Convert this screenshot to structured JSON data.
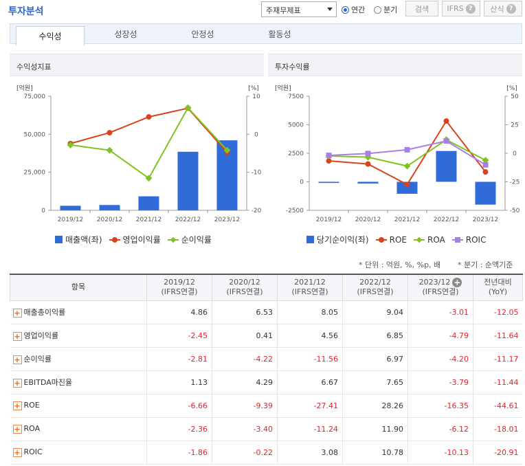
{
  "header": {
    "title": "투자분석",
    "select_value": "주재무제표",
    "radio_annual": "연간",
    "radio_quarter": "분기",
    "search_btn": "검색",
    "ifrs_btn": "IFRS",
    "formula_btn": "산식"
  },
  "tabs": [
    "수익성",
    "성장성",
    "안정성",
    "활동성"
  ],
  "left_chart": {
    "header": "수익성지표",
    "chart_data": {
      "type": "bar",
      "categories": [
        "2019/12",
        "2020/12",
        "2021/12",
        "2022/12",
        "2023/12"
      ],
      "left_unit": "[억원]",
      "right_unit": "[%]",
      "left_ticks": [
        "75,000",
        "50,000",
        "25,000",
        "0"
      ],
      "right_ticks": [
        "10",
        "0",
        "-10",
        "-20"
      ],
      "ylim_left": [
        0,
        75000
      ],
      "ylim_right": [
        -20,
        10
      ],
      "series": [
        {
          "name": "매출액(좌)",
          "kind": "bar",
          "axis": "left",
          "color": "#2f6bd9",
          "values": [
            3000,
            3500,
            9200,
            38500,
            46000
          ]
        },
        {
          "name": "영업이익률",
          "kind": "line",
          "marker": "circle",
          "axis": "right",
          "color": "#d9431b",
          "values": [
            -2.45,
            0.41,
            4.56,
            6.85,
            -4.79
          ]
        },
        {
          "name": "순이익률",
          "kind": "line",
          "marker": "diamond",
          "axis": "right",
          "color": "#7fc31f",
          "values": [
            -2.81,
            -4.22,
            -11.56,
            6.97,
            -4.2
          ]
        }
      ]
    }
  },
  "right_chart": {
    "header": "투자수익률",
    "chart_data": {
      "type": "bar",
      "categories": [
        "2019/12",
        "2020/12",
        "2021/12",
        "2022/12",
        "2023/12"
      ],
      "left_unit": "[억원]",
      "right_unit": "[%]",
      "left_ticks": [
        "7500",
        "5000",
        "2500",
        "0",
        "-2500"
      ],
      "right_ticks": [
        "50",
        "25",
        "0",
        "-25",
        "-50"
      ],
      "ylim_left": [
        -2500,
        7500
      ],
      "ylim_right": [
        -50,
        50
      ],
      "series": [
        {
          "name": "당기순이익(좌)",
          "kind": "bar",
          "axis": "left",
          "color": "#2f6bd9",
          "values": [
            -100,
            -150,
            -1050,
            2700,
            -2000
          ]
        },
        {
          "name": "ROE",
          "kind": "line",
          "marker": "circle",
          "axis": "right",
          "color": "#d9431b",
          "values": [
            -6.66,
            -9.39,
            -27.41,
            28.26,
            -16.35
          ]
        },
        {
          "name": "ROA",
          "kind": "line",
          "marker": "diamond",
          "axis": "right",
          "color": "#7fc31f",
          "values": [
            -2.36,
            -3.4,
            -11.24,
            11.9,
            -6.12
          ]
        },
        {
          "name": "ROIC",
          "kind": "line",
          "marker": "square",
          "axis": "right",
          "color": "#a87fe6",
          "values": [
            -1.86,
            -0.22,
            3.08,
            10.78,
            -10.13
          ]
        }
      ]
    }
  },
  "notes": {
    "unit": "* 단위 : 억원, %, %p, 배",
    "quarter": "* 분기 : 순액기준"
  },
  "table": {
    "headers": [
      {
        "l1": "항목",
        "l2": ""
      },
      {
        "l1": "2019/12",
        "l2": "(IFRS연결)"
      },
      {
        "l1": "2020/12",
        "l2": "(IFRS연결)"
      },
      {
        "l1": "2021/12",
        "l2": "(IFRS연결)"
      },
      {
        "l1": "2022/12",
        "l2": "(IFRS연결)"
      },
      {
        "l1": "2023/12",
        "l2": "(IFRS연결)"
      },
      {
        "l1": "전년대비",
        "l2": "(YoY)"
      }
    ],
    "rows": [
      {
        "label": "매출총이익률",
        "values": [
          "4.86",
          "6.53",
          "8.05",
          "9.04",
          "-3.01",
          "-12.05"
        ]
      },
      {
        "label": "영업이익률",
        "values": [
          "-2.45",
          "0.41",
          "4.56",
          "6.85",
          "-4.79",
          "-11.64"
        ]
      },
      {
        "label": "순이익률",
        "values": [
          "-2.81",
          "-4.22",
          "-11.56",
          "6.97",
          "-4.20",
          "-11.17"
        ]
      },
      {
        "label": "EBITDA마진율",
        "values": [
          "1.13",
          "4.29",
          "6.67",
          "7.65",
          "-3.79",
          "-11.44"
        ]
      },
      {
        "label": "ROE",
        "values": [
          "-6.66",
          "-9.39",
          "-27.41",
          "28.26",
          "-16.35",
          "-44.61"
        ]
      },
      {
        "label": "ROA",
        "values": [
          "-2.36",
          "-3.40",
          "-11.24",
          "11.90",
          "-6.12",
          "-18.01"
        ]
      },
      {
        "label": "ROIC",
        "values": [
          "-1.86",
          "-0.22",
          "3.08",
          "10.78",
          "-10.13",
          "-20.91"
        ]
      }
    ]
  }
}
